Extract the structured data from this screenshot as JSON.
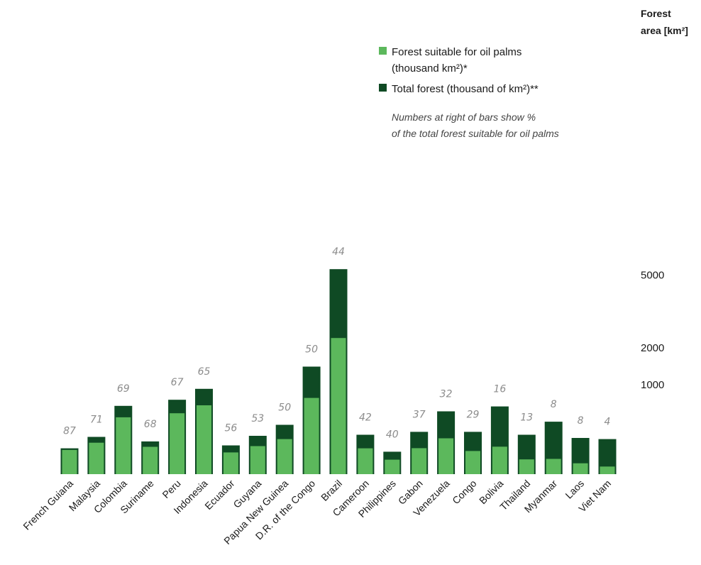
{
  "chart_data": {
    "type": "bar",
    "stacked": "overlay",
    "categories": [
      "French Guiana",
      "Malaysia",
      "Colombia",
      "Suriname",
      "Peru",
      "Indonesia",
      "Ecuador",
      "Guyana",
      "Papua New Guinea",
      "D.R. of the Congo",
      "Brazil",
      "Cameroon",
      "Philippines",
      "Gabon",
      "Venezuela",
      "Congo",
      "Bolivia",
      "Thailand",
      "Myanmar",
      "Laos",
      "Viet Nam"
    ],
    "series": [
      {
        "name": "Total forest (thousand of km²)**",
        "color": "#0f4a24",
        "values": [
          80,
          170,
          580,
          130,
          690,
          910,
          100,
          180,
          300,
          1450,
          5300,
          190,
          60,
          220,
          490,
          220,
          570,
          190,
          340,
          160,
          150
        ]
      },
      {
        "name": "Forest suitable for oil palms (thousand km²)*",
        "color": "#5cb85c",
        "values": [
          70,
          120,
          400,
          90,
          460,
          590,
          56,
          95,
          150,
          725,
          2330,
          80,
          24,
          81,
          157,
          64,
          91,
          25,
          27,
          13,
          6
        ]
      }
    ],
    "percent_labels": [
      "87",
      "71",
      "69",
      "68",
      "67",
      "65",
      "56",
      "53",
      "50",
      "50",
      "44",
      "42",
      "40",
      "37",
      "32",
      "29",
      "16",
      "13",
      "8",
      "8",
      "4"
    ],
    "y_axis": {
      "title_line1": "Forest",
      "title_line2": "area [km²]",
      "ticks": [
        1000,
        2000,
        5000
      ],
      "tick_labels": [
        "1000",
        "2000",
        "5000"
      ],
      "scale": "sqrt",
      "range": [
        0,
        5300
      ],
      "position": "right"
    },
    "legend": {
      "items": [
        {
          "line1": "Forest suitable for oil palms",
          "line2": "(thousand km²)*",
          "color": "#5cb85c"
        },
        {
          "line1": "Total forest (thousand of km²)**",
          "line2": "",
          "color": "#0f4a24"
        }
      ],
      "note_line1": "Numbers at right of bars show %",
      "note_line2": "of the total forest suitable for oil palms",
      "position": "top-right"
    },
    "grid": false
  }
}
